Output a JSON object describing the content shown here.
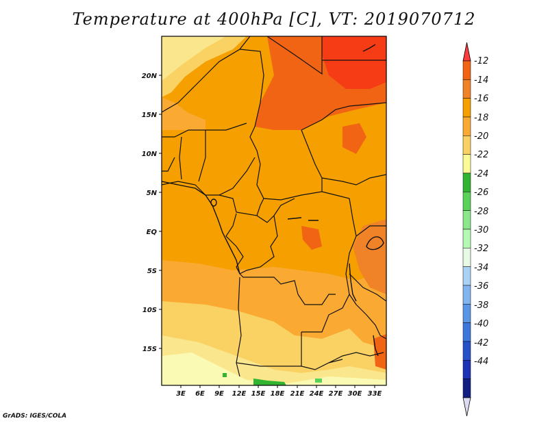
{
  "title": "Temperature at 400hPa [C], VT: 2019070712",
  "map": {
    "lat_ticks": [
      "20N",
      "15N",
      "10N",
      "5N",
      "EQ",
      "5S",
      "10S",
      "15S"
    ],
    "lon_ticks": [
      "3E",
      "6E",
      "9E",
      "12E",
      "15E",
      "18E",
      "21E",
      "24E",
      "27E",
      "30E",
      "33E"
    ]
  },
  "colorbar": {
    "levels": [
      "-12",
      "-14",
      "-16",
      "-18",
      "-20",
      "-22",
      "-24",
      "-26",
      "-28",
      "-30",
      "-32",
      "-34",
      "-36",
      "-38",
      "-40",
      "-42",
      "-44"
    ],
    "colors": [
      "#fa3c3c",
      "#f06414",
      "#f08228",
      "#f5a000",
      "#faaa32",
      "#fad264",
      "#fafa96",
      "#32b432",
      "#5ad25a",
      "#8ce68c",
      "#b4fab4",
      "#e6fae6",
      "#aad2f5",
      "#82b4f0",
      "#5a96e6",
      "#3c78dc",
      "#2850c8",
      "#1e32b4",
      "#141e82",
      "#dcdcf0"
    ]
  },
  "credit": "GrADS: IGES/COLA"
}
